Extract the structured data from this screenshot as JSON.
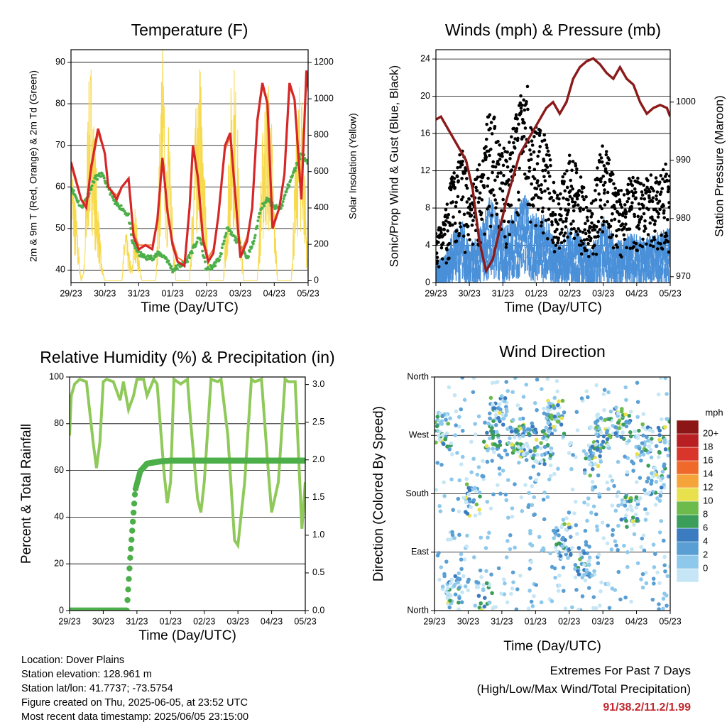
{
  "x_ticks": [
    "29/23",
    "30/23",
    "31/23",
    "01/23",
    "02/23",
    "03/23",
    "04/23",
    "05/23"
  ],
  "x_label": "Time (Day/UTC)",
  "chart_data": [
    {
      "type": "line",
      "title": "Temperature (F)",
      "ylabel": "2m & 9m T (Red, Orange) & 2m Td (Green)",
      "y2label": "Solar Insolation (Yellow)",
      "ylim": [
        37,
        93
      ],
      "y_ticks": [
        40,
        50,
        60,
        70,
        80,
        90
      ],
      "y2lim": [
        -10,
        1270
      ],
      "y2_ticks": [
        0,
        200,
        400,
        600,
        800,
        1000,
        1200
      ],
      "series": [
        {
          "color": "#d62728",
          "x": [
            0,
            0.3,
            0.45,
            0.6,
            0.8,
            1.0,
            1.1,
            1.2,
            1.35,
            1.5,
            1.7,
            1.85,
            2.0,
            2.2,
            2.4,
            2.55,
            2.7,
            2.85,
            3.0,
            3.15,
            3.35,
            3.5,
            3.6,
            3.75,
            3.9,
            4.05,
            4.2,
            4.35,
            4.55,
            4.7,
            4.85,
            5.0,
            5.2,
            5.35,
            5.5,
            5.65,
            5.8,
            5.95,
            6.15,
            6.3,
            6.45,
            6.6,
            6.8,
            6.95,
            7.0
          ],
          "y": [
            66,
            57,
            55,
            65,
            74,
            68,
            60,
            59,
            57,
            60,
            62,
            48,
            45,
            46,
            45,
            52,
            67,
            54,
            46,
            42,
            41,
            55,
            70,
            62,
            47,
            42,
            44,
            53,
            70,
            73,
            58,
            43,
            47,
            55,
            76,
            85,
            80,
            50,
            55,
            63,
            85,
            81,
            57,
            88,
            84
          ]
        },
        {
          "color": "#f0823c",
          "x": [
            0,
            0.3,
            0.45,
            0.6,
            0.8,
            1.0,
            1.1,
            1.2,
            1.35,
            1.5,
            1.7,
            1.85,
            2.0,
            2.2,
            2.4,
            2.55,
            2.7,
            2.85,
            3.0,
            3.15,
            3.35,
            3.5,
            3.6,
            3.75,
            3.9,
            4.05,
            4.2,
            4.35,
            4.55,
            4.7,
            4.85,
            5.0,
            5.2,
            5.35,
            5.5,
            5.65,
            5.8,
            5.95,
            6.15,
            6.3,
            6.45,
            6.6,
            6.8,
            6.95,
            7.0
          ],
          "y": [
            65,
            57,
            56,
            64,
            73,
            68,
            60,
            59,
            58,
            60,
            62,
            49,
            46,
            46,
            46,
            52,
            66,
            54,
            47,
            43,
            42,
            55,
            69,
            62,
            48,
            43,
            45,
            53,
            69,
            72,
            58,
            44,
            48,
            55,
            75,
            84,
            80,
            51,
            55,
            63,
            84,
            81,
            58,
            87,
            83
          ]
        },
        {
          "color": "#4daf4a",
          "x": [
            0,
            0.3,
            0.5,
            0.7,
            0.9,
            1.1,
            1.3,
            1.5,
            1.7,
            1.8,
            2.0,
            2.2,
            2.4,
            2.6,
            2.8,
            3.0,
            3.2,
            3.4,
            3.6,
            3.8,
            4.0,
            4.2,
            4.4,
            4.6,
            4.8,
            5.0,
            5.2,
            5.4,
            5.6,
            5.8,
            6.0,
            6.2,
            6.4,
            6.6,
            6.8,
            7.0
          ],
          "y": [
            60,
            55,
            58,
            62,
            63,
            60,
            56,
            55,
            53,
            47,
            44,
            43,
            43,
            44,
            43,
            40,
            41,
            42,
            45,
            48,
            40,
            41,
            43,
            50,
            48,
            46,
            43,
            47,
            55,
            57,
            55,
            55,
            60,
            64,
            68,
            66
          ]
        },
        {
          "color": "#f7d94c",
          "x": [
            0,
            0.3,
            0.4,
            0.5,
            0.6,
            0.7,
            0.8,
            0.9,
            1.0,
            1.1,
            1.5,
            1.6,
            1.7,
            1.8,
            1.9,
            2.0,
            2.1,
            2.5,
            2.6,
            2.7,
            2.8,
            2.9,
            3.0,
            3.1,
            3.5,
            3.6,
            3.7,
            3.8,
            3.9,
            4.0,
            4.1,
            4.5,
            4.6,
            4.7,
            4.8,
            4.9,
            5.0,
            5.1,
            5.5,
            5.6,
            5.7,
            5.8,
            5.9,
            6.0,
            6.1,
            6.5,
            6.6,
            6.7,
            6.8,
            6.9,
            7.0
          ],
          "y": [
            700,
            0,
            100,
            900,
            1100,
            700,
            400,
            100,
            0,
            0,
            0,
            300,
            150,
            60,
            400,
            120,
            0,
            0,
            600,
            1270,
            500,
            900,
            300,
            0,
            0,
            500,
            900,
            1100,
            700,
            300,
            0,
            0,
            400,
            900,
            1100,
            850,
            300,
            0,
            0,
            500,
            900,
            1000,
            900,
            400,
            0,
            0,
            500,
            900,
            1000,
            600,
            0
          ]
        }
      ]
    },
    {
      "type": "scatter",
      "title": "Winds (mph) & Pressure (mb)",
      "ylabel": "Sonic/Prop Wind & Gust (Blue, Black)",
      "y2label": "Station Pressure (Maroon)",
      "ylim": [
        0,
        25
      ],
      "y_ticks": [
        0,
        4,
        8,
        12,
        16,
        20,
        24
      ],
      "y2lim": [
        969,
        1009
      ],
      "y2_ticks": [
        970,
        980,
        990,
        1000
      ],
      "gust_color": "#000000",
      "wind_color": "#4a90d9",
      "pressure": {
        "color": "#8b1a1a",
        "x": [
          0,
          0.15,
          0.3,
          0.5,
          0.7,
          0.9,
          1.1,
          1.3,
          1.5,
          1.7,
          1.9,
          2.1,
          2.3,
          2.5,
          2.7,
          2.9,
          3.1,
          3.3,
          3.5,
          3.7,
          3.9,
          4.1,
          4.3,
          4.5,
          4.7,
          4.9,
          5.1,
          5.3,
          5.5,
          5.7,
          5.9,
          6.1,
          6.3,
          6.5,
          6.7,
          6.9,
          7.0
        ],
        "y": [
          997,
          997.5,
          996,
          994,
          992,
          990,
          985,
          976,
          971,
          973,
          978,
          983,
          987,
          991,
          993,
          995,
          997,
          999,
          1000,
          998,
          1000,
          1004,
          1006,
          1007,
          1007.5,
          1006.5,
          1005,
          1004,
          1006,
          1004,
          1003,
          1000,
          998,
          999,
          999.5,
          999,
          997.5
        ]
      },
      "gust_peaks": [
        [
          0.2,
          6
        ],
        [
          0.5,
          12
        ],
        [
          0.8,
          15
        ],
        [
          1.0,
          9
        ],
        [
          1.3,
          13
        ],
        [
          1.6,
          21
        ],
        [
          1.8,
          17
        ],
        [
          2.1,
          14
        ],
        [
          2.5,
          20
        ],
        [
          2.7,
          22
        ],
        [
          2.9,
          17
        ],
        [
          3.3,
          16
        ],
        [
          3.6,
          9
        ],
        [
          4.0,
          14
        ],
        [
          4.3,
          12
        ],
        [
          4.6,
          8
        ],
        [
          5.0,
          16
        ],
        [
          5.4,
          10
        ],
        [
          5.8,
          12
        ],
        [
          6.2,
          11
        ],
        [
          6.6,
          12
        ],
        [
          6.9,
          13
        ]
      ]
    },
    {
      "type": "line",
      "title": "Relative Humidity (%) & Precipitation (in)",
      "ylabel": "Percent & Total Rainfall",
      "ylim": [
        0,
        100
      ],
      "y_ticks": [
        0,
        20,
        40,
        60,
        80,
        100
      ],
      "y2lim": [
        0,
        3.1
      ],
      "y2_ticks": [
        "0.0",
        "0.5",
        "1.0",
        "1.5",
        "2.0",
        "2.5",
        "3.0"
      ],
      "series": [
        {
          "color": "#8fc95a",
          "x": [
            0,
            0.05,
            0.15,
            0.3,
            0.5,
            0.7,
            0.8,
            0.9,
            1.0,
            1.1,
            1.3,
            1.5,
            1.6,
            1.75,
            1.9,
            2.0,
            2.2,
            2.3,
            2.5,
            2.6,
            2.8,
            2.9,
            3.0,
            3.1,
            3.3,
            3.5,
            3.6,
            3.8,
            3.9,
            4.0,
            4.2,
            4.4,
            4.5,
            4.7,
            4.9,
            5.0,
            5.2,
            5.4,
            5.5,
            5.7,
            5.9,
            6.0,
            6.2,
            6.4,
            6.5,
            6.7,
            6.9,
            7.0
          ],
          "y": [
            75,
            92,
            97,
            99,
            98,
            72,
            61,
            72,
            98,
            99,
            98,
            90,
            98,
            86,
            92,
            99,
            99,
            92,
            99,
            97,
            60,
            46,
            55,
            99,
            97,
            99,
            80,
            48,
            42,
            55,
            99,
            98,
            99,
            75,
            30,
            28,
            55,
            99,
            98,
            99,
            60,
            42,
            55,
            99,
            98,
            98,
            35,
            55
          ]
        },
        {
          "color": "#4daf4a",
          "x": [
            0,
            1.0,
            1.3,
            1.45,
            1.55,
            1.7,
            1.8,
            1.95,
            2.1,
            2.3,
            2.7,
            3.0,
            4.0,
            5.0,
            6.0,
            7.0
          ],
          "y": [
            0,
            0,
            0,
            0,
            0,
            0,
            0.7,
            1.6,
            1.85,
            1.95,
            1.98,
            1.99,
            1.99,
            1.99,
            1.99,
            1.99
          ]
        }
      ]
    },
    {
      "type": "scatter",
      "title": "Wind Direction",
      "ylabel": "Direction (Colored By Speed)",
      "y_ticks": [
        "North",
        "East",
        "South",
        "West",
        "North"
      ],
      "colorbar_title": "mph",
      "colorbar_labels": [
        "0",
        "2",
        "4",
        "6",
        "8",
        "10",
        "12",
        "14",
        "16",
        "18",
        "20+"
      ],
      "colorbar_colors": [
        "#c6e6f5",
        "#8ec9ec",
        "#5a9fd4",
        "#3b7bbf",
        "#3a9e5a",
        "#6dbb4a",
        "#e8e14d",
        "#f5a43a",
        "#ef6a2a",
        "#d8362a",
        "#b81f22",
        "#8c1616"
      ]
    }
  ],
  "info": {
    "location": "Location: Dover Plains",
    "elevation": "Station elevation: 128.961 m",
    "latlon": "Station lat/lon: 41.7737; -73.5754",
    "created": "Figure created on Thu, 2025-06-05, at 23:52 UTC",
    "recent": "Most recent data timestamp: 2025/06/05 23:15:00"
  },
  "extremes": {
    "title": "Extremes For Past 7 Days",
    "subtitle": "(High/Low/Max Wind/Total Precipitation)",
    "values": "91/38.2/11.2/1.99"
  }
}
